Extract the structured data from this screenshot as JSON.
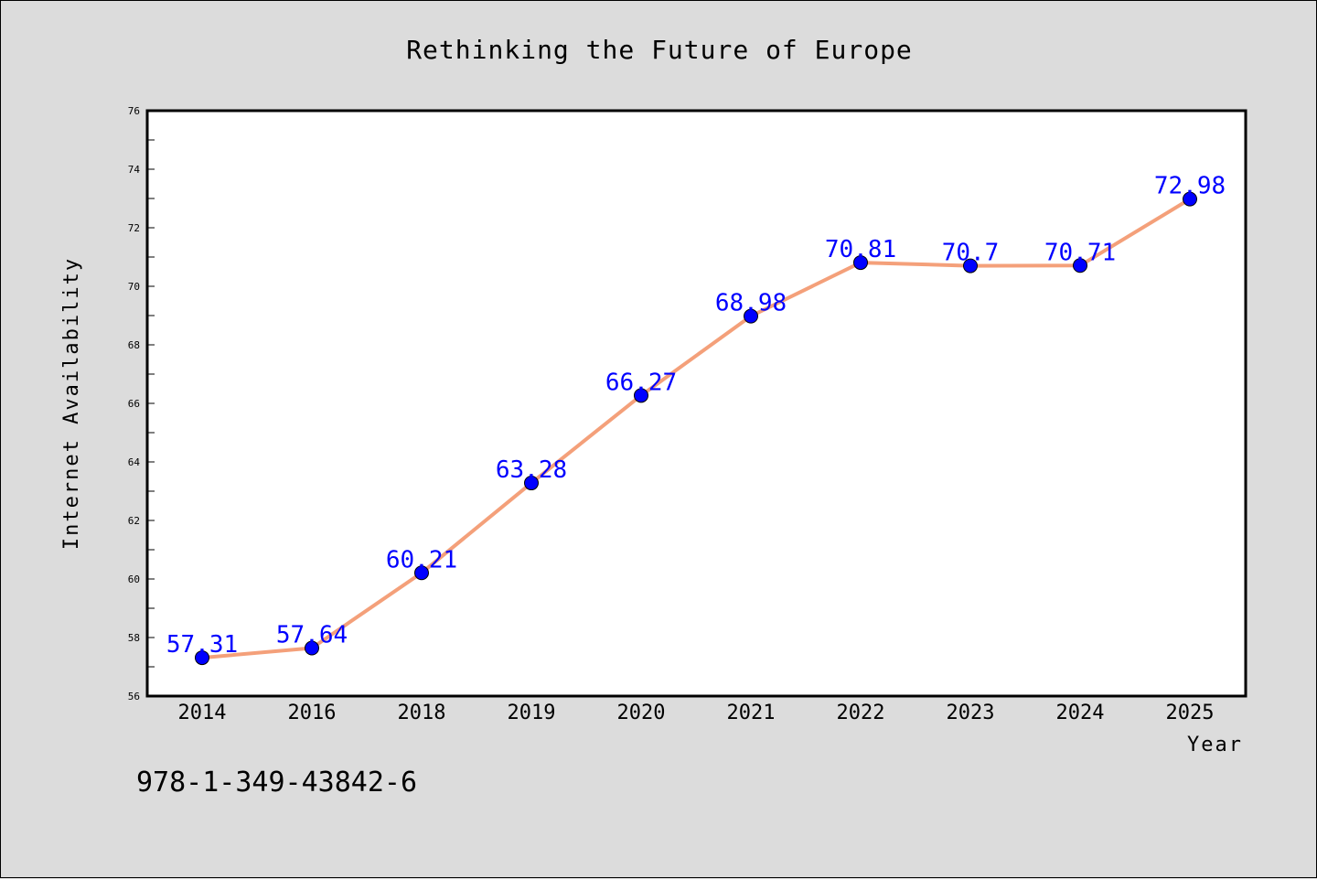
{
  "chart_data": {
    "type": "line",
    "title": "Rethinking the Future of Europe",
    "xlabel": "Year",
    "ylabel": "Internet Availability",
    "categories": [
      "2014",
      "2016",
      "2018",
      "2019",
      "2020",
      "2021",
      "2022",
      "2023",
      "2024",
      "2025"
    ],
    "series": [
      {
        "values": [
          57.31,
          57.64,
          60.21,
          63.28,
          66.27,
          68.98,
          70.81,
          70.7,
          70.71,
          72.98
        ],
        "labels": [
          "57.31",
          "57.64",
          "60.21",
          "63.28",
          "66.27",
          "68.98",
          "70.81",
          "70.7",
          "70.71",
          "72.98"
        ],
        "line_color": "#f4a07a",
        "marker_color": "#0000ff"
      }
    ],
    "ylim": [
      56,
      76
    ],
    "yticks": [
      56,
      58,
      60,
      62,
      64,
      66,
      68,
      70,
      72,
      74,
      76
    ],
    "grid": false,
    "legend": "none",
    "background": "#dcdcdc",
    "plot_background": "#ffffff"
  },
  "footnote": "978-1-349-43842-6"
}
